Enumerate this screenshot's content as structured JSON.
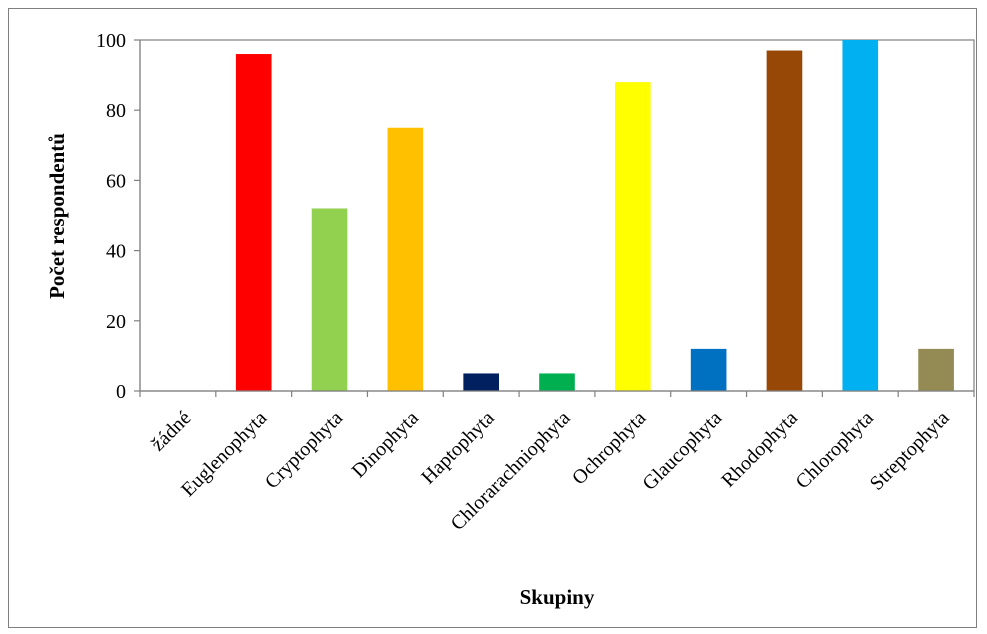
{
  "chart_data": {
    "type": "bar",
    "xlabel": "Skupiny",
    "ylabel": "Počet respondentů",
    "ylim": [
      0,
      100
    ],
    "yticks": [
      0,
      20,
      40,
      60,
      80,
      100
    ],
    "grid": false,
    "legend": "none",
    "categories": [
      "žádné",
      "Euglenophyta",
      "Cryptophyta",
      "Dinophyta",
      "Haptophyta",
      "Chlorarachniophyta",
      "Ochrophyta",
      "Glaucophyta",
      "Rhodophyta",
      "Chlorophyta",
      "Streptophyta"
    ],
    "values": [
      0,
      96,
      52,
      75,
      5,
      5,
      88,
      12,
      97,
      100,
      12
    ],
    "colors": [
      "#ffffff",
      "#ff0000",
      "#92d050",
      "#ffc000",
      "#002060",
      "#00b050",
      "#ffff00",
      "#0070c0",
      "#974706",
      "#00b0f0",
      "#948a54"
    ]
  }
}
